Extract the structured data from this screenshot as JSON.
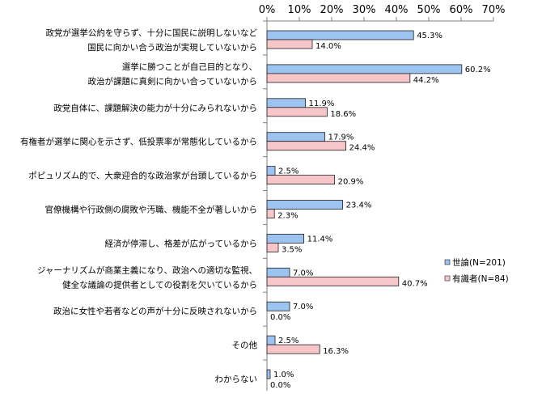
{
  "chart_data": {
    "type": "bar",
    "orientation": "horizontal",
    "title": "",
    "xlabel": "",
    "ylabel": "",
    "xlim": [
      0,
      70
    ],
    "ticks": [
      "0%",
      "10%",
      "20%",
      "30%",
      "40%",
      "50%",
      "60%",
      "70%"
    ],
    "tick_values": [
      0,
      10,
      20,
      30,
      40,
      50,
      60,
      70
    ],
    "grid": false,
    "legend_position": "right",
    "categories": [
      [
        "政党が選挙公約を守らず、十分に国民に説明しないなど",
        "国民に向かい合う政治が実現していないから"
      ],
      [
        "選挙に勝つことが自己目的となり、",
        "政治が課題に真剣に向かい合っていないから"
      ],
      [
        "政党自体に、課題解決の能力が十分にみられないから"
      ],
      [
        "有権者が選挙に関心を示さず、低投票率が常態化しているから"
      ],
      [
        "ポピュリズム的で、大衆迎合的な政治家が台頭しているから"
      ],
      [
        "官僚機構や行政側の腐敗や汚職、機能不全が著しいから"
      ],
      [
        "経済が停滞し、格差が広がっているから"
      ],
      [
        "ジャーナリズムが商業主義になり、政治への適切な監視、",
        "健全な議論の提供者としての役割を欠いているから"
      ],
      [
        "政治に女性や若者などの声が十分に反映されないから"
      ],
      [
        "その他"
      ],
      [
        "わからない"
      ]
    ],
    "series": [
      {
        "name": "世論(N=201)",
        "color": "#9dc3f0",
        "stroke": "#1f1f1f",
        "values": [
          45.3,
          60.2,
          11.9,
          17.9,
          2.5,
          23.4,
          11.4,
          7.0,
          7.0,
          2.5,
          1.0
        ],
        "labels": [
          "45.3%",
          "60.2%",
          "11.9%",
          "17.9%",
          "2.5%",
          "23.4%",
          "11.4%",
          "7.0%",
          "7.0%",
          "2.5%",
          "1.0%"
        ]
      },
      {
        "name": "有識者(N=84)",
        "color": "#f7c6c9",
        "stroke": "#1f1f1f",
        "values": [
          14.0,
          44.2,
          18.6,
          24.4,
          20.9,
          2.3,
          3.5,
          40.7,
          0.0,
          16.3,
          0.0
        ],
        "labels": [
          "14.0%",
          "44.2%",
          "18.6%",
          "24.4%",
          "20.9%",
          "2.3%",
          "3.5%",
          "40.7%",
          "0.0%",
          "16.3%",
          "0.0%"
        ]
      }
    ]
  }
}
